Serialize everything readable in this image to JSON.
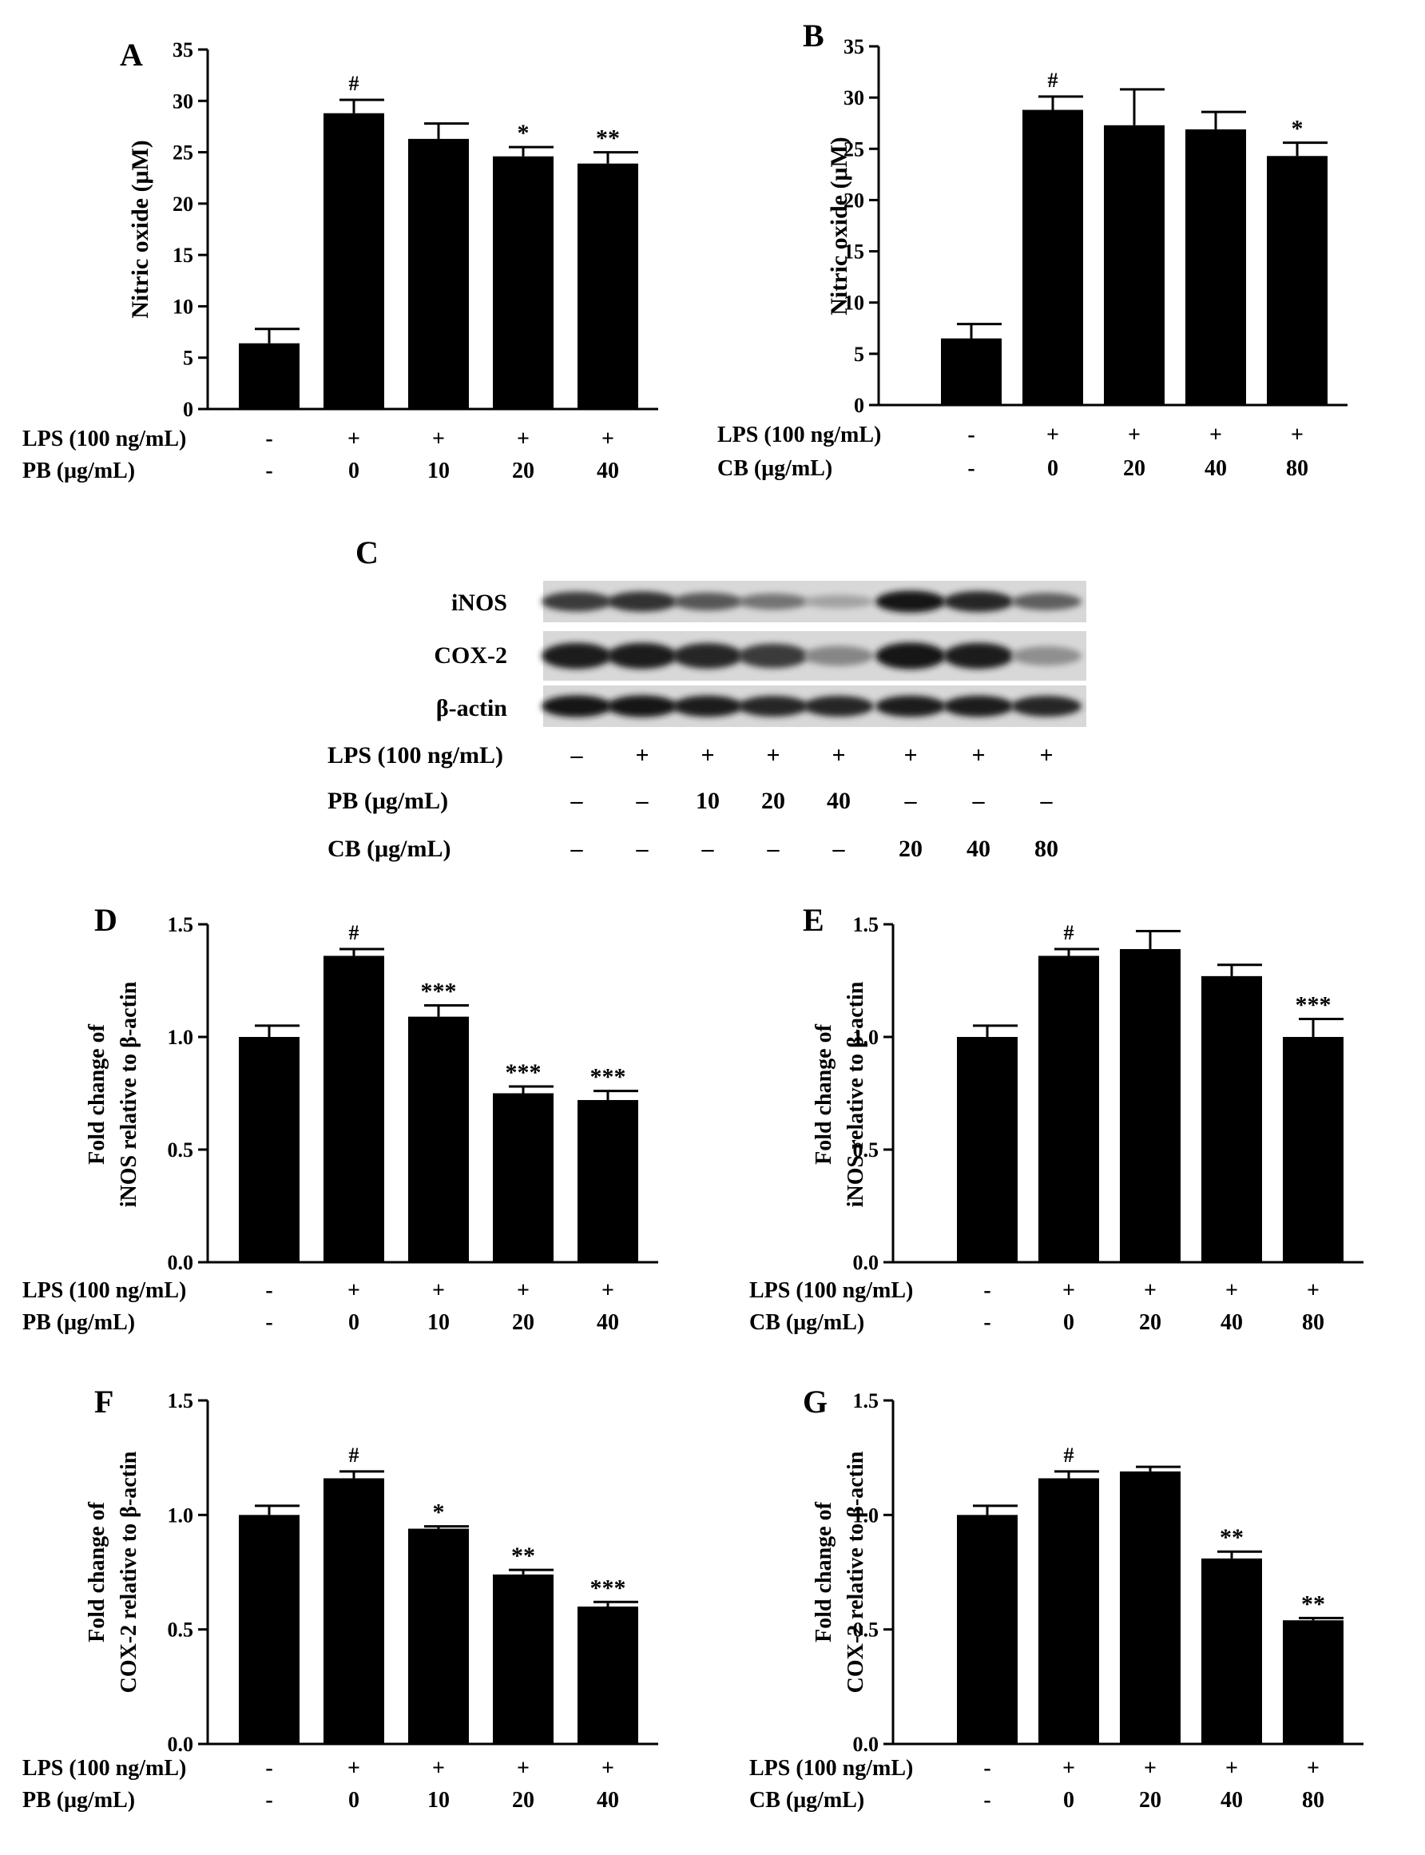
{
  "chart_data": [
    {
      "panel": "A",
      "type": "bar",
      "ylabel": "Nitric oxide (μM)",
      "ylim": [
        0,
        35
      ],
      "yticks": [
        "0",
        "5",
        "10",
        "15",
        "20",
        "25",
        "30",
        "35"
      ],
      "values": [
        6.4,
        28.8,
        26.3,
        24.6,
        23.9
      ],
      "errors": [
        1.4,
        1.3,
        1.5,
        0.9,
        1.1
      ],
      "annotations": [
        "",
        "#",
        "",
        "*",
        "**"
      ],
      "rows": [
        {
          "label": "LPS (100 ng/mL)",
          "values": [
            "-",
            "+",
            "+",
            "+",
            "+"
          ]
        },
        {
          "label": "PB (μg/mL)",
          "values": [
            "-",
            "0",
            "10",
            "20",
            "40"
          ]
        }
      ]
    },
    {
      "panel": "B",
      "type": "bar",
      "ylabel": "Nitric oxide (μM)",
      "ylim": [
        0,
        35
      ],
      "yticks": [
        "0",
        "5",
        "10",
        "15",
        "20",
        "25",
        "30",
        "35"
      ],
      "values": [
        6.5,
        28.8,
        27.3,
        26.9,
        24.3
      ],
      "errors": [
        1.4,
        1.3,
        3.5,
        1.7,
        1.3
      ],
      "annotations": [
        "",
        "#",
        "",
        "",
        "*"
      ],
      "rows": [
        {
          "label": "LPS (100 ng/mL)",
          "values": [
            "-",
            "+",
            "+",
            "+",
            "+"
          ]
        },
        {
          "label": "CB (μg/mL)",
          "values": [
            "-",
            "0",
            "20",
            "40",
            "80"
          ]
        }
      ]
    },
    {
      "panel": "D",
      "type": "bar",
      "ylabel_lines": [
        "Fold change of",
        "iNOS relative to β-actin"
      ],
      "ylim": [
        0,
        1.5
      ],
      "yticks": [
        "0.0",
        "0.5",
        "1.0",
        "1.5"
      ],
      "values": [
        1.0,
        1.36,
        1.09,
        0.75,
        0.72
      ],
      "errors": [
        0.05,
        0.03,
        0.05,
        0.03,
        0.04
      ],
      "annotations": [
        "",
        "#",
        "***",
        "***",
        "***"
      ],
      "rows": [
        {
          "label": "LPS (100 ng/mL)",
          "values": [
            "-",
            "+",
            "+",
            "+",
            "+"
          ]
        },
        {
          "label": "PB (μg/mL)",
          "values": [
            "-",
            "0",
            "10",
            "20",
            "40"
          ]
        }
      ]
    },
    {
      "panel": "E",
      "type": "bar",
      "ylabel_lines": [
        "Fold change of",
        "iNOS relative to β-actin"
      ],
      "ylim": [
        0,
        1.5
      ],
      "yticks": [
        "0.0",
        "0.5",
        "1.0",
        "1.5"
      ],
      "values": [
        1.0,
        1.36,
        1.39,
        1.27,
        1.0
      ],
      "errors": [
        0.05,
        0.03,
        0.08,
        0.05,
        0.08
      ],
      "annotations": [
        "",
        "#",
        "",
        "",
        "***"
      ],
      "rows": [
        {
          "label": "LPS (100 ng/mL)",
          "values": [
            "-",
            "+",
            "+",
            "+",
            "+"
          ]
        },
        {
          "label": "CB (μg/mL)",
          "values": [
            "-",
            "0",
            "20",
            "40",
            "80"
          ]
        }
      ]
    },
    {
      "panel": "F",
      "type": "bar",
      "ylabel_lines": [
        "Fold change of",
        "COX-2 relative to β-actin"
      ],
      "ylim": [
        0,
        1.5
      ],
      "yticks": [
        "0.0",
        "0.5",
        "1.0",
        "1.5"
      ],
      "values": [
        1.0,
        1.16,
        0.94,
        0.74,
        0.6
      ],
      "errors": [
        0.04,
        0.03,
        0.01,
        0.02,
        0.02
      ],
      "annotations": [
        "",
        "#",
        "*",
        "**",
        "***"
      ],
      "rows": [
        {
          "label": "LPS (100 ng/mL)",
          "values": [
            "-",
            "+",
            "+",
            "+",
            "+"
          ]
        },
        {
          "label": "PB (μg/mL)",
          "values": [
            "-",
            "0",
            "10",
            "20",
            "40"
          ]
        }
      ]
    },
    {
      "panel": "G",
      "type": "bar",
      "ylabel_lines": [
        "Fold change of",
        "COX-2 relative to β-actin"
      ],
      "ylim": [
        0,
        1.5
      ],
      "yticks": [
        "0.0",
        "0.5",
        "1.0",
        "1.5"
      ],
      "values": [
        1.0,
        1.16,
        1.19,
        0.81,
        0.54
      ],
      "errors": [
        0.04,
        0.03,
        0.02,
        0.03,
        0.01
      ],
      "annotations": [
        "",
        "#",
        "",
        "**",
        "**"
      ],
      "rows": [
        {
          "label": "LPS (100 ng/mL)",
          "values": [
            "-",
            "+",
            "+",
            "+",
            "+"
          ]
        },
        {
          "label": "CB (μg/mL)",
          "values": [
            "-",
            "0",
            "20",
            "40",
            "80"
          ]
        }
      ]
    }
  ],
  "blot": {
    "panel": "C",
    "bands": [
      "iNOS",
      "COX-2",
      "β-actin"
    ],
    "band_intensity": [
      [
        0.75,
        0.8,
        0.6,
        0.45,
        0.2,
        0.95,
        0.85,
        0.55
      ],
      [
        0.9,
        0.9,
        0.85,
        0.75,
        0.35,
        0.95,
        0.9,
        0.3
      ],
      [
        0.95,
        0.95,
        0.9,
        0.85,
        0.85,
        0.9,
        0.9,
        0.85
      ]
    ],
    "rows": [
      {
        "label": "LPS (100 ng/mL)",
        "values": [
          "–",
          "+",
          "+",
          "+",
          "+",
          "+",
          "+",
          "+"
        ]
      },
      {
        "label": "PB (μg/mL)",
        "values": [
          "–",
          "–",
          "10",
          "20",
          "40",
          "–",
          "–",
          "–"
        ]
      },
      {
        "label": "CB (μg/mL)",
        "values": [
          "–",
          "–",
          "–",
          "–",
          "–",
          "20",
          "40",
          "80"
        ]
      }
    ]
  }
}
